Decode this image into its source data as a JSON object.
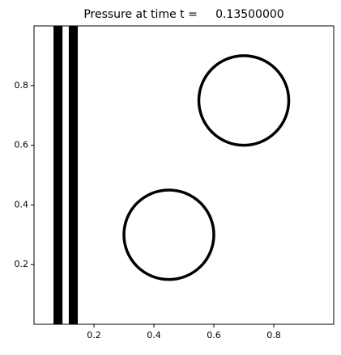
{
  "chart_data": {
    "type": "field",
    "title": "Pressure at time t =     0.13500000",
    "xlim": [
      0,
      1
    ],
    "ylim": [
      0,
      1
    ],
    "xticks": [
      0.2,
      0.4,
      0.6,
      0.8
    ],
    "yticks": [
      0.2,
      0.4,
      0.6,
      0.8
    ],
    "color": "#000000",
    "bars": [
      {
        "x0": 0.065,
        "x1": 0.095
      },
      {
        "x0": 0.116,
        "x1": 0.146
      }
    ],
    "circles": [
      {
        "cx": 0.7,
        "cy": 0.75,
        "r": 0.15
      },
      {
        "cx": 0.45,
        "cy": 0.3,
        "r": 0.15
      }
    ]
  }
}
